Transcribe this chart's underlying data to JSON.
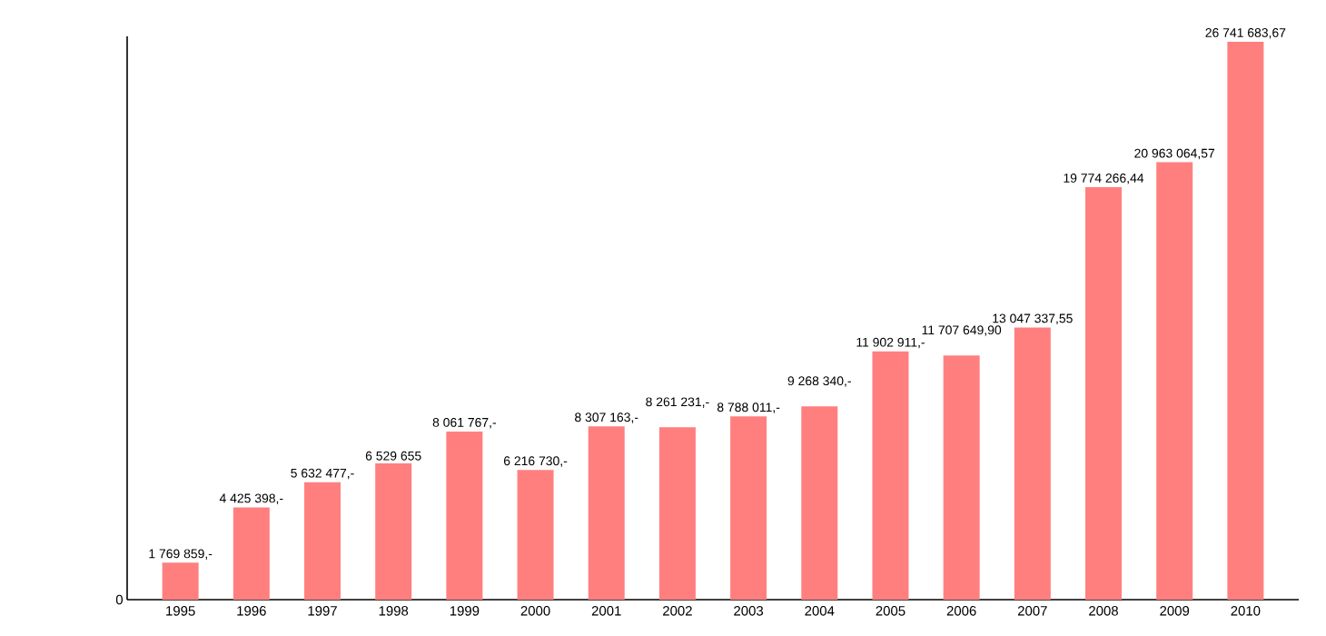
{
  "chart_data": {
    "type": "bar",
    "categories": [
      "1995",
      "1996",
      "1997",
      "1998",
      "1999",
      "2000",
      "2001",
      "2002",
      "2003",
      "2004",
      "2005",
      "2006",
      "2007",
      "2008",
      "2009",
      "2010"
    ],
    "values": [
      1769859,
      4425398,
      5632477,
      6529655,
      8061767,
      6216730,
      8307163,
      8261231,
      8788011,
      9268340,
      11902911,
      11707649.9,
      13047337.55,
      19774266.44,
      20963064.57,
      26741683.67
    ],
    "value_labels": [
      "1 769 859,-",
      "4 425 398,-",
      "5 632 477,-",
      "6 529 655",
      "8 061 767,-",
      "6 216 730,-",
      "8 307 163,-",
      "8 261 231,-",
      "8 788 011,-",
      "9 268 340,-",
      "11 902 911,-",
      "11 707 649,90",
      "13 047 337,55",
      "19 774 266,44",
      "20 963 064,57",
      "26 741 683,67"
    ],
    "color": "#ff7f7f",
    "ylim": [
      0,
      27000000
    ],
    "annotations": [
      "0"
    ],
    "grid": false
  }
}
